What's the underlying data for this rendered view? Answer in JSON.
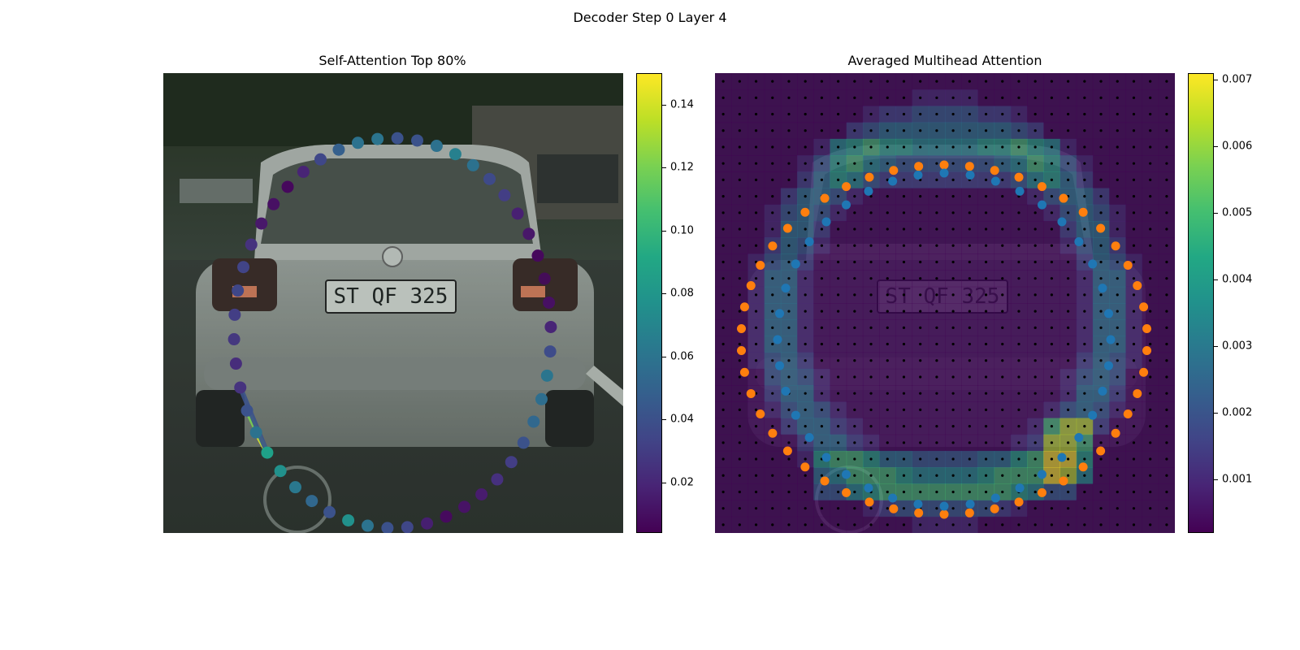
{
  "figure": {
    "suptitle": "Decoder Step 0 Layer 4"
  },
  "chart_data": [
    {
      "type": "scatter",
      "title": "Self-Attention Top 80%",
      "background": "car image (rear view of silver hatchback, license plate ST QF 325)",
      "xlabel": "",
      "ylabel": "",
      "points_count": 50,
      "point_colors_hex": [
        "#3b528b",
        "#31688e",
        "#2a788e",
        "#21918c",
        "#1fa188",
        "#2c728e",
        "#3b528b",
        "#46337e",
        "#472d7b",
        "#45387f",
        "#433e85",
        "#3f4788",
        "#414487",
        "#46327e",
        "#48186a",
        "#471063",
        "#46085c",
        "#482475",
        "#3f4788",
        "#35608d",
        "#2c728e",
        "#2b748e",
        "#3b528b",
        "#3b528b",
        "#2d718e",
        "#27808e",
        "#2c718e",
        "#3e4a89",
        "#433e85",
        "#482072",
        "#481769",
        "#46085c",
        "#440d57",
        "#471063",
        "#482576",
        "#3e4c8a",
        "#2b758e",
        "#2e6e8e",
        "#31688e",
        "#3b528b",
        "#433e85",
        "#46307e",
        "#481c6e",
        "#471365",
        "#460a5d",
        "#461f70",
        "#3f4788",
        "#3b518b",
        "#2c738e",
        "#21918c"
      ],
      "attention_lines": [
        {
          "from_point": 4,
          "to_point": 5,
          "weight": 0.15
        },
        {
          "from_point": 4,
          "to_point": 6,
          "weight": 0.12
        },
        {
          "from_point": 4,
          "to_point": 7,
          "weight": 0.04
        }
      ],
      "colorbar": {
        "ticks": [
          "0.02",
          "0.04",
          "0.06",
          "0.08",
          "0.10",
          "0.12",
          "0.14"
        ],
        "tick_values": [
          0.02,
          0.04,
          0.06,
          0.08,
          0.1,
          0.12,
          0.14
        ],
        "vmin": 0.004,
        "vmax": 0.15,
        "colormap": "viridis"
      }
    },
    {
      "type": "heatmap",
      "title": "Averaged Multihead Attention",
      "background": "same car image with attention heatmap overlay",
      "xlabel": "",
      "ylabel": "",
      "grid_size": [
        28,
        28
      ],
      "series": [
        {
          "name": "",
          "color": "#1f77b4",
          "points_count": 40
        },
        {
          "name": "",
          "color": "#ff7f0e",
          "points_count": 50
        }
      ],
      "sampling_grid_dot_color": "#000000",
      "colorbar": {
        "ticks": [
          "0.001",
          "0.002",
          "0.003",
          "0.004",
          "0.005",
          "0.006",
          "0.007"
        ],
        "tick_values": [
          0.001,
          0.002,
          0.003,
          0.004,
          0.005,
          0.006,
          0.007
        ],
        "vmin": 0.0002,
        "vmax": 0.0071,
        "colormap": "viridis"
      }
    }
  ]
}
